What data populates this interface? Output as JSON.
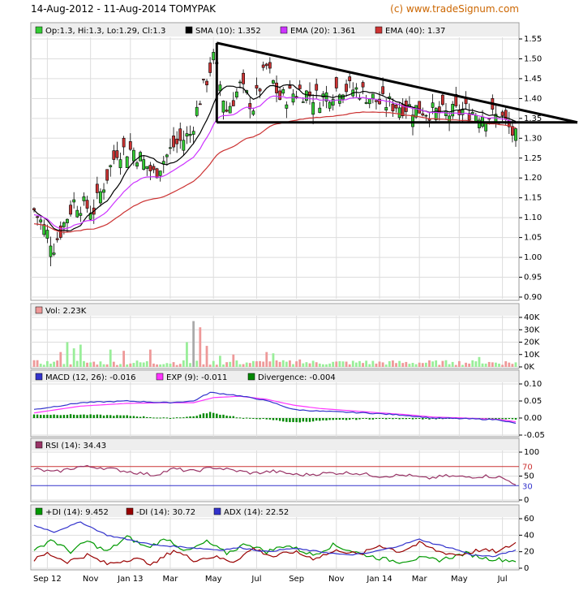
{
  "header": {
    "title": "14-Aug-2012 - 11-Aug-2014 TOMYPAK",
    "watermark": "(c) www.tradeSignum.com"
  },
  "colors": {
    "up": "#33cc33",
    "down": "#cc3333",
    "sma": "#000000",
    "ema20": "#cc33ff",
    "ema40": "#cc3333",
    "vol_up": "#99ee99",
    "vol_down": "#ee9999",
    "macd": "#3333cc",
    "exp": "#ff33ff",
    "div": "#008800",
    "rsi": "#993366",
    "pdi": "#009900",
    "mdi": "#990000",
    "adx": "#3333cc",
    "grid": "#dddddd",
    "trend": "#000000"
  },
  "chart_data": [
    {
      "type": "candlestick",
      "legend": [
        "Op:1.3, Hi:1.3, Lo:1.29, Cl:1.3",
        "SMA (10): 1.352",
        "EMA (20): 1.361",
        "EMA (40): 1.37"
      ],
      "ylim": [
        0.9,
        1.55
      ],
      "yticks": [
        "1.55",
        "1.50",
        "1.45",
        "1.40",
        "1.35",
        "1.30",
        "1.25",
        "1.20",
        "1.15",
        "1.10",
        "1.05",
        "1.00",
        "0.95",
        "0.90"
      ],
      "series_close_anchors": [
        [
          0,
          1.12
        ],
        [
          6,
          1.03
        ],
        [
          12,
          1.14
        ],
        [
          18,
          1.12
        ],
        [
          25,
          1.27
        ],
        [
          30,
          1.27
        ],
        [
          36,
          1.21
        ],
        [
          42,
          1.28
        ],
        [
          47,
          1.31
        ],
        [
          50,
          1.4
        ],
        [
          54,
          1.5
        ],
        [
          58,
          1.37
        ],
        [
          62,
          1.43
        ],
        [
          66,
          1.38
        ],
        [
          70,
          1.48
        ],
        [
          74,
          1.4
        ],
        [
          80,
          1.42
        ],
        [
          86,
          1.4
        ],
        [
          92,
          1.43
        ],
        [
          98,
          1.42
        ],
        [
          104,
          1.39
        ],
        [
          112,
          1.38
        ],
        [
          118,
          1.37
        ],
        [
          124,
          1.36
        ],
        [
          130,
          1.37
        ],
        [
          136,
          1.36
        ],
        [
          141,
          1.35
        ],
        [
          145,
          1.3
        ]
      ],
      "trendlines": [
        {
          "from": [
            "May-2013",
            1.54
          ],
          "to": [
            "Aug-2014",
            1.34
          ]
        },
        {
          "from": [
            "May-2013",
            1.34
          ],
          "to": [
            "Aug-2014",
            1.34
          ]
        },
        {
          "from": [
            "May-2013",
            1.34
          ],
          "to": [
            "May-2013",
            1.54
          ]
        }
      ]
    },
    {
      "type": "bar",
      "legend": [
        "Vol: 2.23K"
      ],
      "ylim": [
        0,
        40000
      ],
      "yticks": [
        "40K",
        "30K",
        "20K",
        "10K",
        "0K"
      ],
      "peaks": [
        [
          8,
          12000
        ],
        [
          10,
          20000
        ],
        [
          12,
          15000
        ],
        [
          14,
          18000
        ],
        [
          23,
          14000
        ],
        [
          27,
          13000
        ],
        [
          35,
          14000
        ],
        [
          46,
          20000
        ],
        [
          48,
          37000
        ],
        [
          50,
          32000
        ],
        [
          52,
          17000
        ],
        [
          56,
          9000
        ],
        [
          60,
          10000
        ],
        [
          70,
          12000
        ],
        [
          72,
          11000
        ],
        [
          80,
          6000
        ],
        [
          100,
          5000
        ],
        [
          126,
          4000
        ],
        [
          134,
          8000
        ]
      ]
    },
    {
      "type": "line",
      "legend": [
        "MACD (12, 26): -0.016",
        "EXP (9): -0.011",
        "Divergence: -0.004"
      ],
      "ylim": [
        -0.05,
        0.1
      ],
      "yticks": [
        "0.10",
        "0.05",
        "0.00",
        "-0.05"
      ],
      "macd_anchors": [
        [
          0,
          0.025
        ],
        [
          14,
          0.045
        ],
        [
          28,
          0.05
        ],
        [
          40,
          0.045
        ],
        [
          48,
          0.05
        ],
        [
          53,
          0.075
        ],
        [
          60,
          0.068
        ],
        [
          68,
          0.055
        ],
        [
          72,
          0.045
        ],
        [
          78,
          0.025
        ],
        [
          86,
          0.02
        ],
        [
          100,
          0.015
        ],
        [
          112,
          0.008
        ],
        [
          120,
          0.0
        ],
        [
          130,
          -0.002
        ],
        [
          140,
          -0.005
        ],
        [
          145,
          -0.016
        ]
      ],
      "exp_anchors": [
        [
          0,
          0.015
        ],
        [
          14,
          0.035
        ],
        [
          28,
          0.043
        ],
        [
          40,
          0.045
        ],
        [
          48,
          0.045
        ],
        [
          54,
          0.06
        ],
        [
          62,
          0.064
        ],
        [
          70,
          0.055
        ],
        [
          78,
          0.038
        ],
        [
          86,
          0.028
        ],
        [
          100,
          0.018
        ],
        [
          112,
          0.01
        ],
        [
          120,
          0.003
        ],
        [
          130,
          0.0
        ],
        [
          140,
          -0.004
        ],
        [
          145,
          -0.011
        ]
      ],
      "divergence_note": "MACD minus EXP, drawn as bars"
    },
    {
      "type": "line",
      "legend": [
        "RSI (14): 34.43"
      ],
      "ylim": [
        0,
        100
      ],
      "yticks": [
        "100",
        "50",
        "0"
      ],
      "bands": [
        "70",
        "30"
      ],
      "rsi_anchors": [
        [
          0,
          65
        ],
        [
          6,
          58
        ],
        [
          14,
          70
        ],
        [
          20,
          68
        ],
        [
          28,
          60
        ],
        [
          36,
          52
        ],
        [
          42,
          65
        ],
        [
          48,
          60
        ],
        [
          54,
          68
        ],
        [
          60,
          62
        ],
        [
          66,
          56
        ],
        [
          72,
          60
        ],
        [
          80,
          52
        ],
        [
          88,
          56
        ],
        [
          96,
          57
        ],
        [
          104,
          50
        ],
        [
          112,
          52
        ],
        [
          118,
          45
        ],
        [
          124,
          50
        ],
        [
          130,
          48
        ],
        [
          136,
          50
        ],
        [
          140,
          48
        ],
        [
          145,
          34
        ]
      ]
    },
    {
      "type": "line",
      "legend": [
        "+DI (14): 9.452",
        "-DI (14): 30.72",
        "ADX (14): 22.52"
      ],
      "ylim": [
        0,
        60
      ],
      "yticks": [
        "60",
        "40",
        "20",
        "0"
      ],
      "pdi_anchors": [
        [
          0,
          20
        ],
        [
          5,
          35
        ],
        [
          11,
          20
        ],
        [
          16,
          33
        ],
        [
          22,
          20
        ],
        [
          28,
          38
        ],
        [
          34,
          25
        ],
        [
          40,
          36
        ],
        [
          46,
          20
        ],
        [
          52,
          32
        ],
        [
          58,
          18
        ],
        [
          64,
          30
        ],
        [
          70,
          20
        ],
        [
          76,
          28
        ],
        [
          84,
          16
        ],
        [
          90,
          28
        ],
        [
          98,
          18
        ],
        [
          104,
          12
        ],
        [
          110,
          8
        ],
        [
          116,
          12
        ],
        [
          122,
          10
        ],
        [
          130,
          18
        ],
        [
          136,
          12
        ],
        [
          142,
          10
        ],
        [
          145,
          9
        ]
      ],
      "mdi_anchors": [
        [
          0,
          10
        ],
        [
          4,
          18
        ],
        [
          10,
          8
        ],
        [
          16,
          16
        ],
        [
          22,
          5
        ],
        [
          30,
          12
        ],
        [
          36,
          5
        ],
        [
          42,
          22
        ],
        [
          48,
          10
        ],
        [
          54,
          14
        ],
        [
          60,
          8
        ],
        [
          66,
          24
        ],
        [
          72,
          14
        ],
        [
          78,
          20
        ],
        [
          84,
          12
        ],
        [
          92,
          22
        ],
        [
          98,
          16
        ],
        [
          104,
          28
        ],
        [
          110,
          20
        ],
        [
          116,
          30
        ],
        [
          122,
          20
        ],
        [
          128,
          16
        ],
        [
          134,
          22
        ],
        [
          140,
          20
        ],
        [
          145,
          31
        ]
      ],
      "adx_anchors": [
        [
          0,
          52
        ],
        [
          6,
          44
        ],
        [
          14,
          56
        ],
        [
          22,
          40
        ],
        [
          28,
          35
        ],
        [
          36,
          28
        ],
        [
          44,
          26
        ],
        [
          50,
          24
        ],
        [
          56,
          22
        ],
        [
          62,
          25
        ],
        [
          70,
          20
        ],
        [
          78,
          24
        ],
        [
          86,
          20
        ],
        [
          94,
          16
        ],
        [
          100,
          18
        ],
        [
          108,
          25
        ],
        [
          116,
          35
        ],
        [
          120,
          30
        ],
        [
          126,
          24
        ],
        [
          132,
          16
        ],
        [
          138,
          14
        ],
        [
          145,
          22
        ]
      ]
    }
  ],
  "xaxis": {
    "labels": [
      "Sep 12",
      "Nov",
      "Jan 13",
      "Mar",
      "May",
      "Jul",
      "Sep",
      "Nov",
      "Jan 14",
      "Mar",
      "May",
      "Jul"
    ]
  }
}
